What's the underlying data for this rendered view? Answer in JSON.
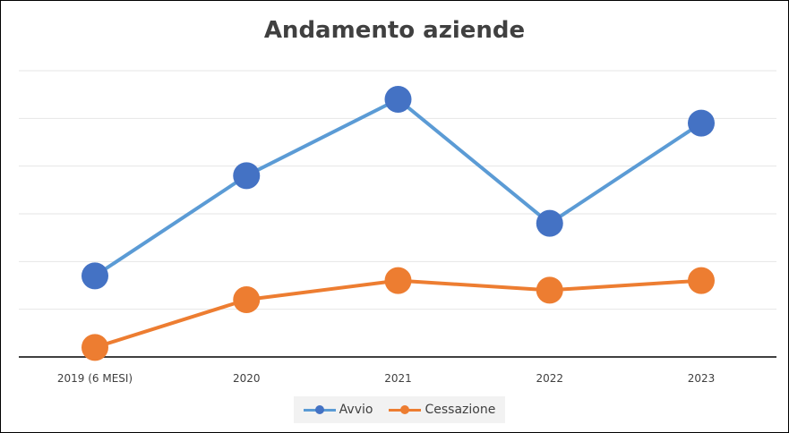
{
  "chart_data": {
    "type": "line",
    "title": "Andamento aziende",
    "categories": [
      "2019 (6 MESI)",
      "2020",
      "2021",
      "2022",
      "2023"
    ],
    "series": [
      {
        "name": "Avvio",
        "values": [
          17,
          38,
          54,
          28,
          49
        ],
        "color": "#4472c4",
        "line_color": "#5b9bd5"
      },
      {
        "name": "Cessazione",
        "values": [
          2,
          12,
          16,
          14,
          16
        ],
        "color": "#ed7d31",
        "line_color": "#ed7d31"
      }
    ],
    "ylim": [
      0,
      60
    ],
    "grid": true,
    "legend": "bottom"
  }
}
